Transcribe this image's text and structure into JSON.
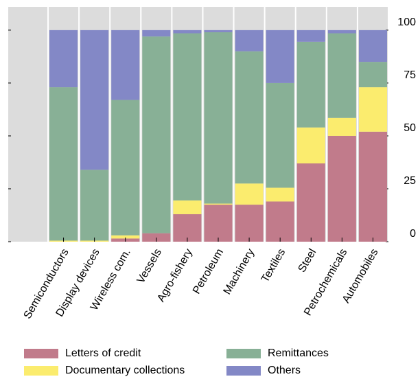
{
  "chart_data": {
    "type": "stacked_bar",
    "categories": [
      "Semiconductors",
      "Display devices",
      "Wireless com.",
      "Vessels",
      "Agro-fishery",
      "Petroleum",
      "Machinery",
      "Textiles",
      "Steel",
      "Petrochemicals",
      "Automobiles"
    ],
    "series": [
      {
        "name": "Letters of credit",
        "color": "#c17b8b",
        "values": [
          0,
          0,
          1.5,
          4,
          13,
          17.5,
          17.5,
          19,
          37,
          50,
          52
        ]
      },
      {
        "name": "Documentary collections",
        "color": "#fbec6e",
        "values": [
          0.5,
          0.5,
          1.5,
          0,
          6.5,
          0.5,
          10,
          6.5,
          17,
          8.5,
          21
        ]
      },
      {
        "name": "Remittances",
        "color": "#88b096",
        "values": [
          72.5,
          33.5,
          64,
          93,
          79,
          81,
          62.5,
          49.5,
          40.5,
          40,
          12
        ]
      },
      {
        "name": "Others",
        "color": "#8388c6",
        "values": [
          27,
          66,
          33,
          3,
          1.5,
          1,
          10,
          25,
          5.5,
          1.5,
          15
        ]
      }
    ],
    "ylim": [
      0,
      111
    ],
    "yticks": [
      0,
      25,
      50,
      75,
      100
    ],
    "grid": true,
    "legend": "bottom"
  }
}
